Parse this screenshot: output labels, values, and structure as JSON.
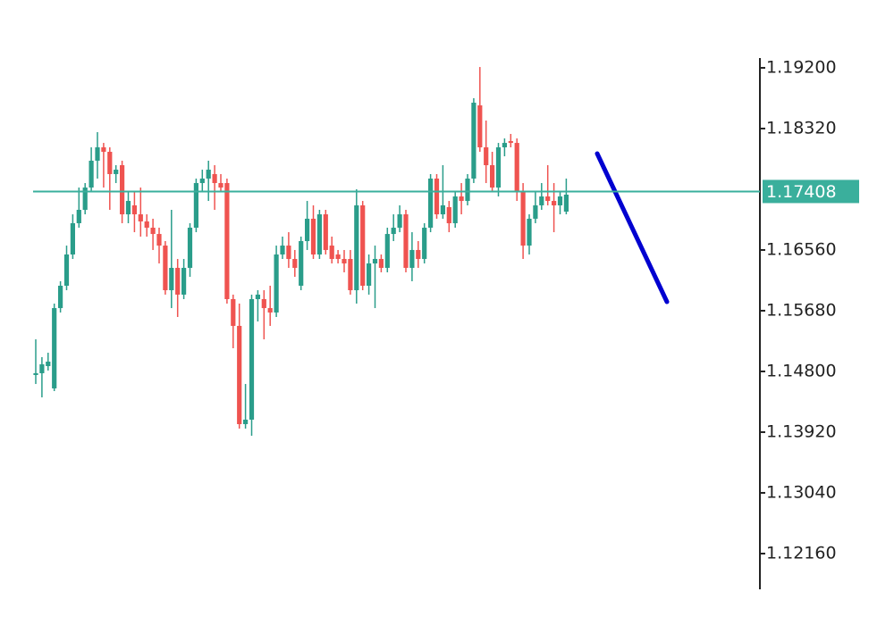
{
  "chart_data": {
    "type": "candlestick",
    "open": [
      1.14748,
      1.14774,
      1.14877,
      1.14554,
      1.15718,
      1.16042,
      1.16495,
      1.16948,
      1.17142,
      1.17465,
      1.17854,
      1.18048,
      1.17983,
      1.1766,
      1.17789,
      1.17077,
      1.17207,
      1.17077,
      1.16974,
      1.16883,
      1.16792,
      1.16624,
      1.15977,
      1.16301,
      1.15913,
      1.16301,
      1.16883,
      1.1753,
      1.17595,
      1.1766,
      1.1753,
      1.1753,
      1.15848,
      1.1546,
      1.14036,
      1.14101,
      1.15848,
      1.15848,
      1.15718,
      1.15654,
      1.16495,
      1.16624,
      1.1643,
      1.16042,
      1.16689,
      1.17013,
      1.16495,
      1.17077,
      1.16624,
      1.16495,
      1.1643,
      1.1643,
      1.15977,
      1.17207,
      1.16042,
      1.16365,
      1.1643,
      1.16301,
      1.16792,
      1.16883,
      1.17077,
      1.16301,
      1.1656,
      1.1643,
      1.16883,
      1.17595,
      1.17077,
      1.17181,
      1.16948,
      1.17336,
      1.17271,
      1.17595,
      1.18656,
      1.18048,
      1.17789,
      1.17465,
      1.18048,
      1.18138,
      1.18112,
      1.17401,
      1.16624,
      1.17013,
      1.17207,
      1.17336,
      1.17271,
      1.17207,
      1.17116
    ],
    "high": [
      1.15265,
      1.15007,
      1.15071,
      1.15783,
      1.16107,
      1.16624,
      1.17077,
      1.17465,
      1.1753,
      1.18048,
      1.18268,
      1.18112,
      1.18048,
      1.17789,
      1.17854,
      1.17401,
      1.17401,
      1.17465,
      1.17077,
      1.17013,
      1.16883,
      1.16689,
      1.17142,
      1.1643,
      1.1643,
      1.16948,
      1.17595,
      1.17724,
      1.17854,
      1.17789,
      1.1766,
      1.17595,
      1.15913,
      1.15783,
      1.14618,
      1.15913,
      1.15977,
      1.15977,
      1.16042,
      1.16624,
      1.16754,
      1.16818,
      1.1656,
      1.16754,
      1.17271,
      1.17207,
      1.17142,
      1.17142,
      1.16754,
      1.1656,
      1.1656,
      1.1656,
      1.1744,
      1.17271,
      1.16495,
      1.16624,
      1.16495,
      1.16883,
      1.17077,
      1.17207,
      1.17142,
      1.16818,
      1.16689,
      1.16948,
      1.1766,
      1.1766,
      1.17789,
      1.17271,
      1.17401,
      1.1753,
      1.1766,
      1.1876,
      1.19212,
      1.18436,
      1.17983,
      1.18112,
      1.18177,
      1.18242,
      1.18177,
      1.1753,
      1.17077,
      1.17401,
      1.1753,
      1.17789,
      1.1753,
      1.17401,
      1.17595
    ],
    "low": [
      1.14618,
      1.14424,
      1.14813,
      1.14515,
      1.15654,
      1.15977,
      1.1643,
      1.16883,
      1.17077,
      1.17401,
      1.17595,
      1.17465,
      1.17142,
      1.1753,
      1.16948,
      1.16948,
      1.16818,
      1.16754,
      1.16754,
      1.1656,
      1.16365,
      1.15913,
      1.15718,
      1.15589,
      1.15848,
      1.16171,
      1.16818,
      1.17401,
      1.17271,
      1.17142,
      1.17401,
      1.15783,
      1.15136,
      1.13971,
      1.13971,
      1.13868,
      1.15524,
      1.15265,
      1.1546,
      1.15589,
      1.1643,
      1.16301,
      1.16171,
      1.15977,
      1.1656,
      1.1643,
      1.1643,
      1.16495,
      1.16365,
      1.16365,
      1.16236,
      1.15913,
      1.15783,
      1.15977,
      1.15913,
      1.15718,
      1.16236,
      1.16236,
      1.16689,
      1.16818,
      1.16236,
      1.16107,
      1.16301,
      1.16365,
      1.16818,
      1.17013,
      1.17013,
      1.16818,
      1.16883,
      1.17077,
      1.17207,
      1.1753,
      1.17983,
      1.1753,
      1.17401,
      1.17336,
      1.17918,
      1.18048,
      1.17271,
      1.1643,
      1.16495,
      1.16948,
      1.17142,
      1.17207,
      1.16818,
      1.17077,
      1.17077
    ],
    "close": [
      1.14774,
      1.14903,
      1.14942,
      1.15718,
      1.16042,
      1.16495,
      1.16948,
      1.17142,
      1.17465,
      1.17854,
      1.18048,
      1.17983,
      1.1766,
      1.17724,
      1.17077,
      1.17271,
      1.17077,
      1.16974,
      1.16883,
      1.16792,
      1.16624,
      1.15977,
      1.16301,
      1.15913,
      1.16301,
      1.16883,
      1.1753,
      1.17595,
      1.17724,
      1.1753,
      1.17465,
      1.15848,
      1.1546,
      1.14036,
      1.14101,
      1.15848,
      1.15913,
      1.15718,
      1.15654,
      1.16495,
      1.16624,
      1.1643,
      1.16301,
      1.16689,
      1.17013,
      1.16495,
      1.17077,
      1.1656,
      1.1643,
      1.1643,
      1.16365,
      1.15977,
      1.17207,
      1.16042,
      1.16365,
      1.1643,
      1.16301,
      1.16792,
      1.16883,
      1.17077,
      1.16301,
      1.1656,
      1.1643,
      1.16883,
      1.17595,
      1.17077,
      1.17207,
      1.16948,
      1.17336,
      1.17271,
      1.17595,
      1.18695,
      1.18048,
      1.17789,
      1.17465,
      1.18048,
      1.18112,
      1.18112,
      1.17401,
      1.16624,
      1.17013,
      1.17207,
      1.17336,
      1.17271,
      1.17207,
      1.17336,
      1.17362
    ],
    "up_color": "#2a9d8a",
    "down_color": "#ef5350",
    "ylim": [
      1.11642,
      1.19342
    ],
    "yticks": [
      {
        "value": 1.192,
        "label": "1.19200"
      },
      {
        "value": 1.1832,
        "label": "1.18320"
      },
      {
        "value": 1.1656,
        "label": "1.16560"
      },
      {
        "value": 1.1568,
        "label": "1.15680"
      },
      {
        "value": 1.148,
        "label": "1.14800"
      },
      {
        "value": 1.1392,
        "label": "1.13920"
      },
      {
        "value": 1.1304,
        "label": "1.13040"
      },
      {
        "value": 1.1216,
        "label": "1.12160"
      }
    ],
    "current_price": {
      "value": 1.17408,
      "label": "1.17408"
    },
    "current_price_color": "#3aaf9c"
  }
}
